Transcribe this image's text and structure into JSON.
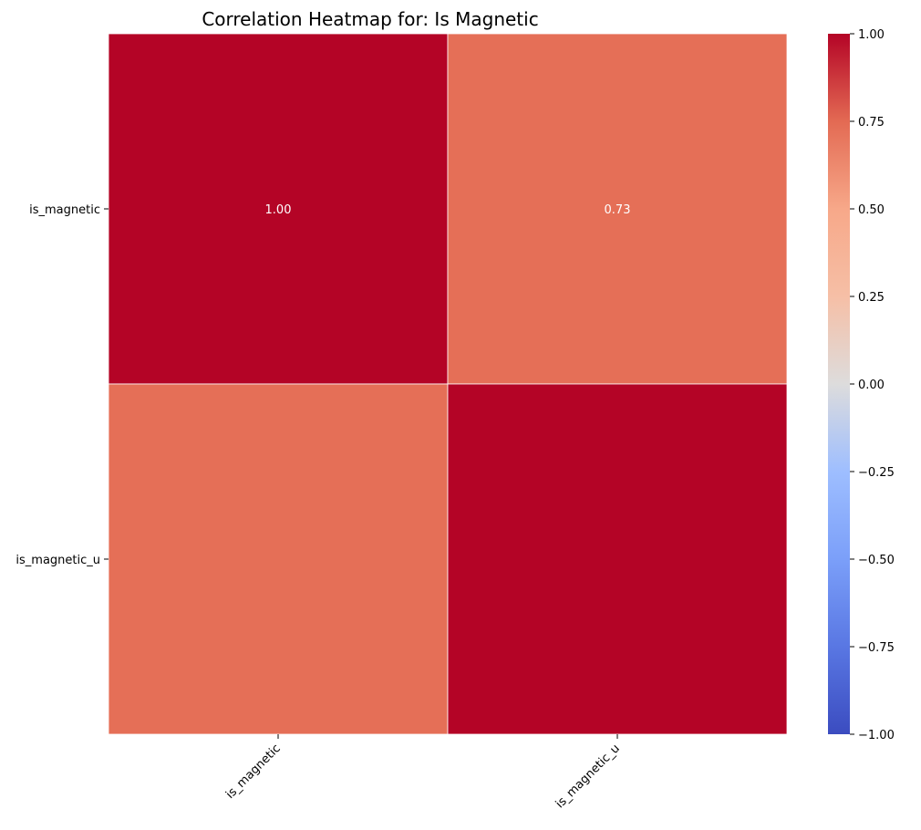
{
  "chart_data": {
    "type": "heatmap",
    "title": "Correlation Heatmap for: Is Magnetic",
    "xlabel": "",
    "ylabel": "",
    "x_categories": [
      "is_magnetic",
      "is_magnetic_u"
    ],
    "y_categories": [
      "is_magnetic",
      "is_magnetic_u"
    ],
    "matrix": [
      [
        1.0,
        0.73
      ],
      [
        0.73,
        1.0
      ]
    ],
    "cell_labels": [
      [
        "1.00",
        "0.73"
      ],
      [
        "",
        ""
      ]
    ],
    "colormap": "coolwarm",
    "colormap_stops": [
      {
        "value": -1.0,
        "color": "#3b4cc0"
      },
      {
        "value": -0.75,
        "color": "#5977e3"
      },
      {
        "value": -0.5,
        "color": "#7b9ff9"
      },
      {
        "value": -0.25,
        "color": "#9ebeff"
      },
      {
        "value": 0.0,
        "color": "#dddcdc"
      },
      {
        "value": 0.25,
        "color": "#f6bfa6"
      },
      {
        "value": 0.5,
        "color": "#f7a889"
      },
      {
        "value": 0.75,
        "color": "#e36a53"
      },
      {
        "value": 1.0,
        "color": "#b40426"
      }
    ],
    "vlim": [
      -1.0,
      1.0
    ],
    "colorbar_ticks": [
      1.0,
      0.75,
      0.5,
      0.25,
      0.0,
      -0.25,
      -0.5,
      -0.75,
      -1.0
    ],
    "colorbar_tick_labels": [
      "1.00",
      "0.75",
      "0.50",
      "0.25",
      "0.00",
      "−0.25",
      "−0.50",
      "−0.75",
      "−1.00"
    ],
    "grid": false,
    "legend": "colorbar-right"
  }
}
